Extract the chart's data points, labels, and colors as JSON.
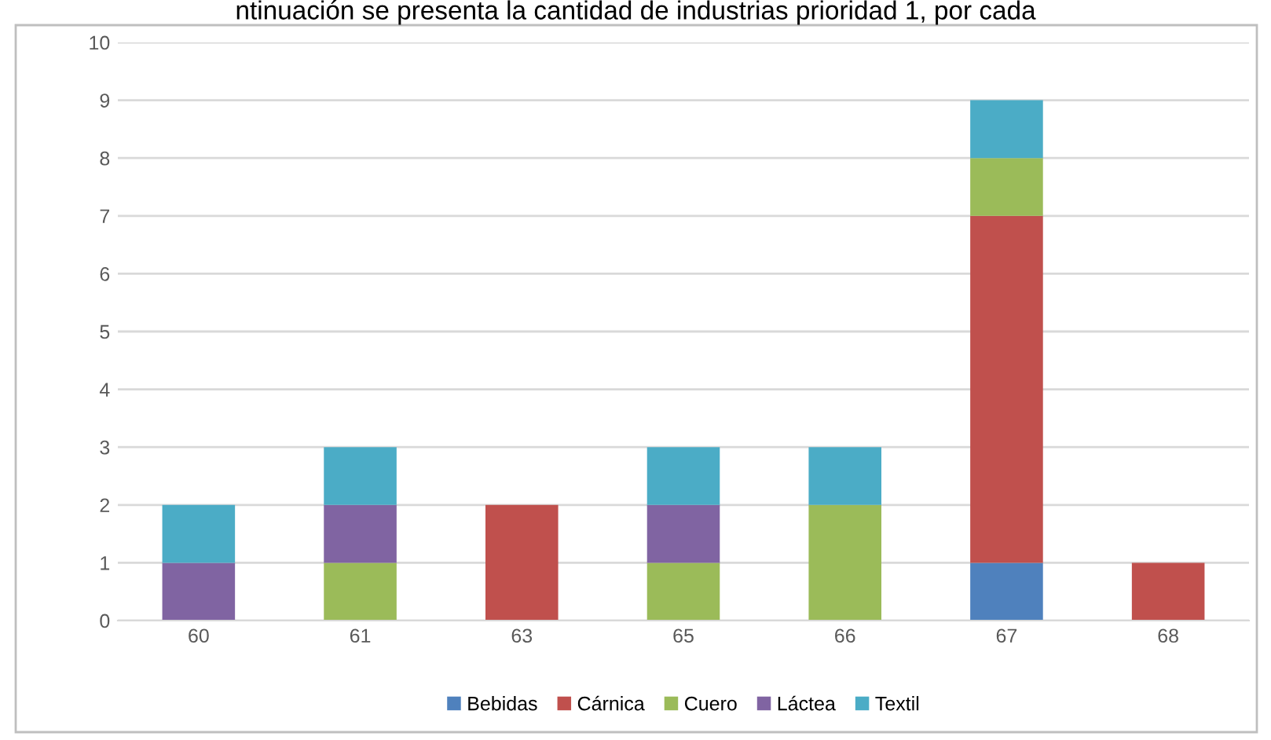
{
  "chart_data": {
    "type": "bar",
    "stacked": true,
    "title": "ntinuación se presenta la cantidad de industrias prioridad 1, por cada",
    "categories": [
      "60",
      "61",
      "63",
      "65",
      "66",
      "67",
      "68"
    ],
    "series": [
      {
        "name": "Bebidas",
        "color": "#4f81bd",
        "values": [
          0,
          0,
          0,
          0,
          0,
          1,
          0
        ]
      },
      {
        "name": "Cárnica",
        "color": "#c0504d",
        "values": [
          0,
          0,
          2,
          0,
          0,
          6,
          1
        ]
      },
      {
        "name": "Cuero",
        "color": "#9bbb59",
        "values": [
          0,
          1,
          0,
          1,
          2,
          1,
          0
        ]
      },
      {
        "name": "Láctea",
        "color": "#8064a2",
        "values": [
          1,
          1,
          0,
          1,
          0,
          0,
          0
        ]
      },
      {
        "name": "Textil",
        "color": "#4bacc6",
        "values": [
          1,
          1,
          0,
          1,
          1,
          1,
          0
        ]
      }
    ],
    "ylim": [
      0,
      10
    ],
    "yticks": [
      0,
      1,
      2,
      3,
      4,
      5,
      6,
      7,
      8,
      9,
      10
    ],
    "grid": "y",
    "legend": "bottom"
  }
}
